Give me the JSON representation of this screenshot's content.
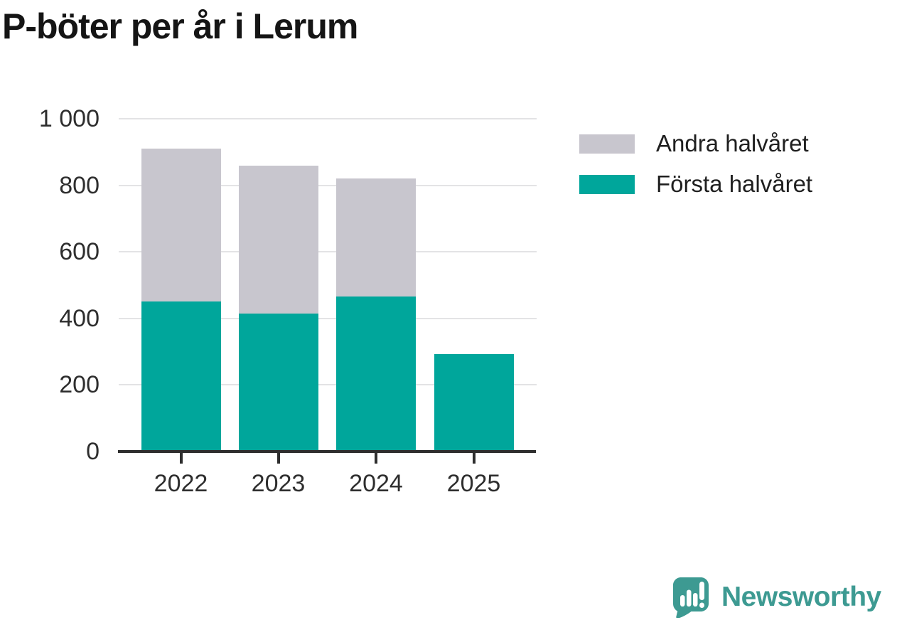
{
  "title": "P-böter per år i Lerum",
  "chart_data": {
    "type": "bar",
    "stacked": true,
    "title": "P-böter per år i Lerum",
    "xlabel": "",
    "ylabel": "",
    "categories": [
      "2022",
      "2023",
      "2024",
      "2025"
    ],
    "series": [
      {
        "name": "Första halvåret",
        "color": "#00a69b",
        "values": [
          450,
          415,
          465,
          293
        ]
      },
      {
        "name": "Andra halvåret",
        "color": "#c8c6ce",
        "values": [
          460,
          445,
          355,
          0
        ]
      }
    ],
    "totals": [
      910,
      860,
      820,
      293
    ],
    "ylim": [
      0,
      1000
    ],
    "y_ticks": {
      "values": [
        0,
        200,
        400,
        600,
        800,
        1000
      ],
      "labels": [
        "0",
        "200",
        "400",
        "600",
        "800",
        "1 000"
      ]
    },
    "grid": "horizontal",
    "legend_position": "right"
  },
  "legend": {
    "items": [
      {
        "label": "Andra halvåret",
        "series": "Andra halvåret"
      },
      {
        "label": "Första halvåret",
        "series": "Första halvåret"
      }
    ]
  },
  "branding": {
    "name": "Newsworthy",
    "color": "#3d9a92",
    "logo": "newsworthy-logo"
  }
}
